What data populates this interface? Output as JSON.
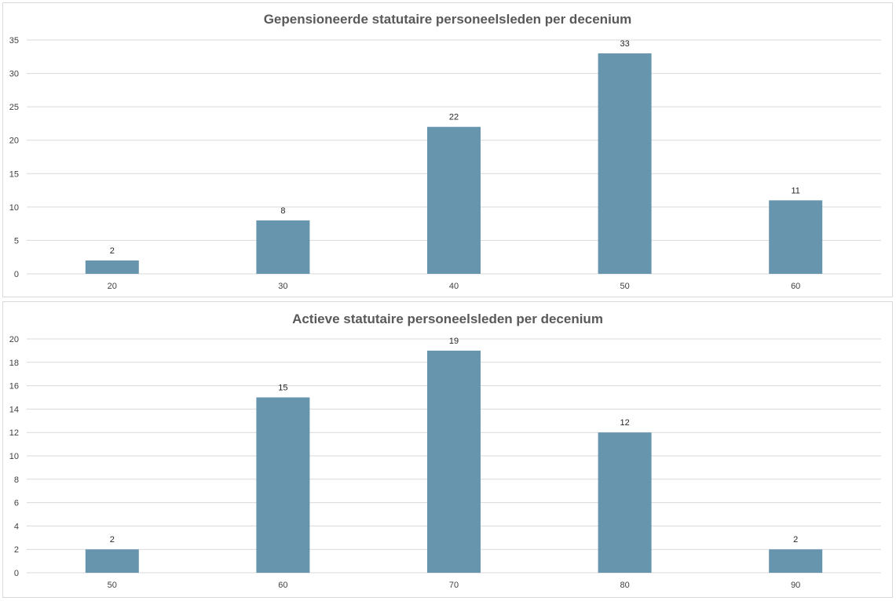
{
  "chart_data": [
    {
      "type": "bar",
      "title": "Gepensioneerde statutaire personeelsleden per decenium",
      "xlabel": "",
      "ylabel": "",
      "categories": [
        "20",
        "30",
        "40",
        "50",
        "60"
      ],
      "values": [
        2,
        8,
        22,
        33,
        11
      ],
      "ylim": [
        0,
        35
      ],
      "yticks": [
        0,
        5,
        10,
        15,
        20,
        25,
        30,
        35
      ],
      "grid": true,
      "data_labels": true,
      "bar_color": "#6795ae"
    },
    {
      "type": "bar",
      "title": "Actieve statutaire personeelsleden per decenium",
      "xlabel": "",
      "ylabel": "",
      "categories": [
        "50",
        "60",
        "70",
        "80",
        "90"
      ],
      "values": [
        2,
        15,
        19,
        12,
        2
      ],
      "ylim": [
        0,
        20
      ],
      "yticks": [
        0,
        2,
        4,
        6,
        8,
        10,
        12,
        14,
        16,
        18,
        20
      ],
      "grid": true,
      "data_labels": true,
      "bar_color": "#6795ae"
    }
  ]
}
